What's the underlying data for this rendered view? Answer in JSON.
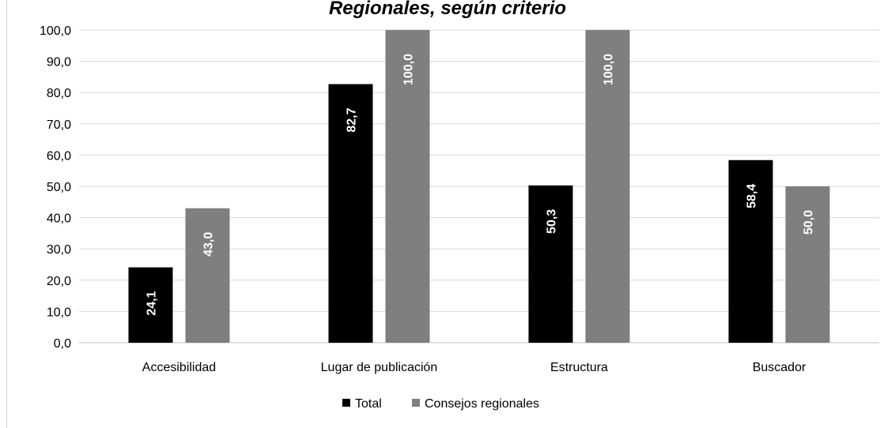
{
  "chart_data": {
    "type": "bar",
    "title": "Regionales, según criterio",
    "categories": [
      "Accesibilidad",
      "Lugar de publicación",
      "Estructura",
      "Buscador"
    ],
    "series": [
      {
        "name": "Total",
        "color": "#000000",
        "values": [
          24.1,
          82.7,
          50.3,
          58.4
        ],
        "labels": [
          "24,1",
          "82,7",
          "50,3",
          "58,4"
        ]
      },
      {
        "name": "Consejos regionales",
        "color": "#7f7f7f",
        "values": [
          43.0,
          100.0,
          100.0,
          50.0
        ],
        "labels": [
          "43,0",
          "100,0",
          "100,0",
          "50,0"
        ]
      }
    ],
    "ylim": [
      0,
      100
    ],
    "y_ticks": [
      "0,0",
      "10,0",
      "20,0",
      "30,0",
      "40,0",
      "50,0",
      "60,0",
      "70,0",
      "80,0",
      "90,0",
      "100,0"
    ],
    "gridlines": true,
    "legend_position": "bottom"
  }
}
